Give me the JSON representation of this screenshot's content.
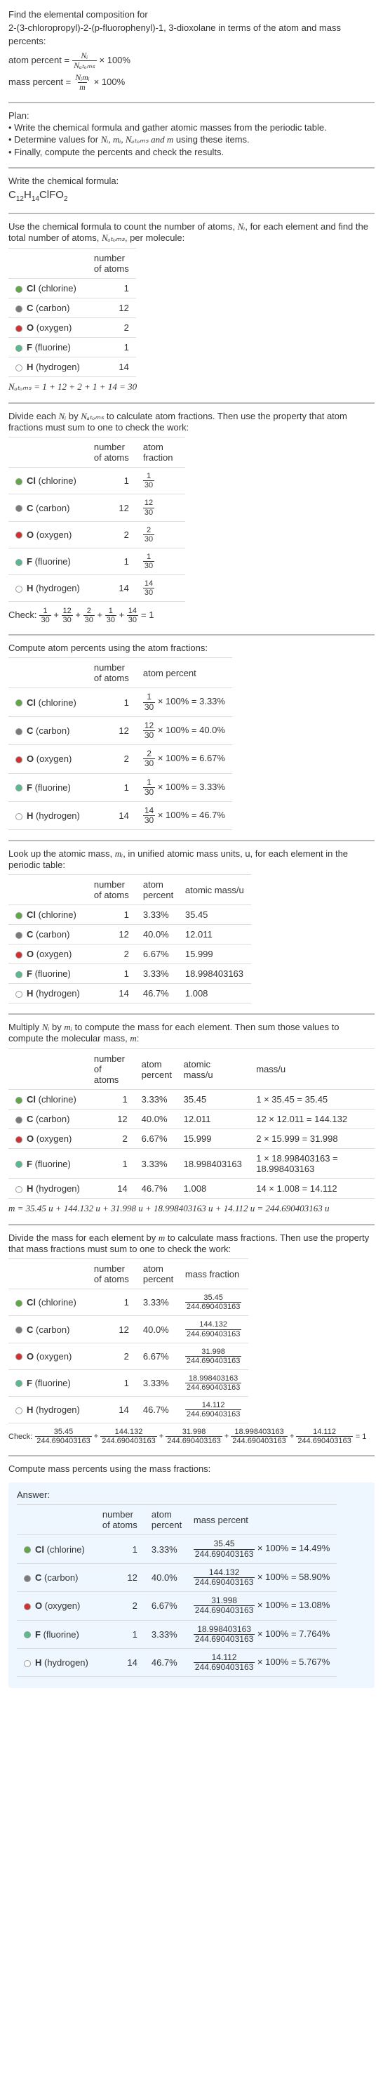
{
  "intro": {
    "line1": "Find the elemental composition for",
    "line2": "2-(3-chloropropyl)-2-(p-fluorophenyl)-1, 3-dioxolane in terms of the atom and mass percents:",
    "atom_percent_lhs": "atom percent =",
    "atom_percent_num": "Nᵢ",
    "atom_percent_den": "Nₐₜₒₘₛ",
    "times100": "× 100%",
    "mass_percent_lhs": "mass percent =",
    "mass_percent_num": "Nᵢmᵢ",
    "mass_percent_den": "m"
  },
  "plan": {
    "title": "Plan:",
    "i1": "• Write the chemical formula and gather atomic masses from the periodic table.",
    "i2_a": "• Determine values for ",
    "i2_b": " using these items.",
    "i2_vars": "Nᵢ, mᵢ, Nₐₜₒₘₛ and m",
    "i3": "• Finally, compute the percents and check the results."
  },
  "step_formula": {
    "title": "Write the chemical formula:",
    "formula_parts": [
      "C",
      "12",
      "H",
      "14",
      "ClFO",
      "2"
    ]
  },
  "step_count": {
    "title_a": "Use the chemical formula to count the number of atoms, ",
    "title_var": "Nᵢ",
    "title_b": ", for each element and find the total number of atoms, ",
    "title_var2": "Nₐₜₒₘₛ",
    "title_c": ", per molecule:",
    "header_n": "number of atoms",
    "total_line": "Nₐₜₒₘₛ = 1 + 12 + 2 + 1 + 14 = 30"
  },
  "elements": [
    {
      "sym": "Cl",
      "name": "(chlorine)",
      "color": "#5fa843",
      "n": "1",
      "af": "1/30",
      "ap": "3.33%",
      "mass": "35.45",
      "mfrac_num": "35.45",
      "mp": "14.49%",
      "mval": "1 × 35.45 = 35.45"
    },
    {
      "sym": "C",
      "name": "(carbon)",
      "color": "#7a7a7a",
      "n": "12",
      "af": "12/30",
      "ap": "40.0%",
      "mass": "12.011",
      "mfrac_num": "144.132",
      "mp": "58.90%",
      "mval": "12 × 12.011 = 144.132"
    },
    {
      "sym": "O",
      "name": "(oxygen)",
      "color": "#d23030",
      "n": "2",
      "af": "2/30",
      "ap": "6.67%",
      "mass": "15.999",
      "mfrac_num": "31.998",
      "mp": "13.08%",
      "mval": "2 × 15.999 = 31.998"
    },
    {
      "sym": "F",
      "name": "(fluorine)",
      "color": "#56bb8f",
      "n": "1",
      "af": "1/30",
      "ap": "3.33%",
      "mass": "18.998403163",
      "mfrac_num": "18.998403163",
      "mp": "7.764%",
      "mval": "1 × 18.998403163 = 18.998403163"
    },
    {
      "sym": "H",
      "name": "(hydrogen)",
      "color": "#ffffff",
      "n": "14",
      "af": "14/30",
      "ap": "46.7%",
      "mass": "1.008",
      "mfrac_num": "14.112",
      "mp": "5.767%",
      "mval": "14 × 1.008 = 14.112"
    }
  ],
  "atom_fraction": {
    "title_a": "Divide each ",
    "title_b": " by ",
    "title_c": " to calculate atom fractions. Then use the property that atom fractions must sum to one to check the work:",
    "header_af": "atom fraction",
    "check_label": "Check: ",
    "check_rhs": " = 1"
  },
  "atom_percent": {
    "title": "Compute atom percents using the atom fractions:",
    "header_ap": "atom percent"
  },
  "atomic_mass": {
    "title_a": "Look up the atomic mass, ",
    "title_var": "mᵢ",
    "title_b": ", in unified atomic mass units, u, for each element in the periodic table:",
    "header_am": "atomic mass/u"
  },
  "mass_calc": {
    "title_a": "Multiply ",
    "title_b": " by ",
    "title_c": " to compute the mass for each element. Then sum those values to compute the molecular mass, ",
    "title_d": ":",
    "header_mass": "mass/u",
    "total": "m = 35.45 u + 144.132 u + 31.998 u + 18.998403163 u + 14.112 u = 244.690403163 u"
  },
  "mass_fraction": {
    "title_a": "Divide the mass for each element by ",
    "title_b": " to calculate mass fractions. Then use the property that mass fractions must sum to one to check the work:",
    "header_mf": "mass fraction",
    "den": "244.690403163"
  },
  "mass_percent": {
    "title": "Compute mass percents using the mass fractions:",
    "header_mp": "mass percent"
  },
  "answer_label": "Answer:",
  "x100": "× 100% ="
}
